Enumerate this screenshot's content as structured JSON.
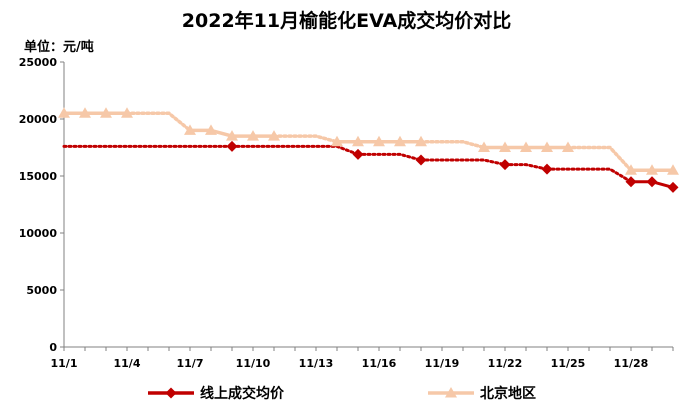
{
  "chart_data": {
    "type": "line",
    "title": "2022年11月榆能化EVA成交均价对比",
    "unit_label": "单位：元/吨",
    "ylim": [
      0,
      25000
    ],
    "y_ticks": [
      0,
      5000,
      10000,
      15000,
      20000,
      25000
    ],
    "x_tick_labels": [
      "11/1",
      "11/4",
      "11/7",
      "11/10",
      "11/13",
      "11/16",
      "11/19",
      "11/22",
      "11/25",
      "11/28"
    ],
    "x_range": [
      1,
      30
    ],
    "grid": false,
    "legend_position": "bottom",
    "series": [
      {
        "name": "线上成交均价",
        "color": "#c00000",
        "marker": "diamond",
        "points": [
          {
            "x": 1,
            "y": 17600,
            "gap_before": false,
            "marker": false
          },
          {
            "x": 9,
            "y": 17600,
            "gap_before": true,
            "marker": true
          },
          {
            "x": 14,
            "y": 17600,
            "gap_before": true,
            "marker": false
          },
          {
            "x": 15,
            "y": 16900,
            "gap_before": true,
            "marker": true
          },
          {
            "x": 18,
            "y": 16400,
            "gap_before": true,
            "marker": true
          },
          {
            "x": 22,
            "y": 16000,
            "gap_before": true,
            "marker": true
          },
          {
            "x": 24,
            "y": 15600,
            "gap_before": true,
            "marker": true
          },
          {
            "x": 28,
            "y": 14500,
            "gap_before": true,
            "marker": true
          },
          {
            "x": 29,
            "y": 14500,
            "gap_before": false,
            "marker": true
          },
          {
            "x": 30,
            "y": 14000,
            "gap_before": false,
            "marker": true
          }
        ]
      },
      {
        "name": "北京地区",
        "color": "#f6c8a8",
        "marker": "triangle",
        "points": [
          {
            "x": 1,
            "y": 20500,
            "gap_before": false,
            "marker": true
          },
          {
            "x": 2,
            "y": 20500,
            "gap_before": false,
            "marker": true
          },
          {
            "x": 3,
            "y": 20500,
            "gap_before": false,
            "marker": true
          },
          {
            "x": 4,
            "y": 20500,
            "gap_before": false,
            "marker": true
          },
          {
            "x": 7,
            "y": 19000,
            "gap_before": true,
            "marker": true
          },
          {
            "x": 8,
            "y": 19000,
            "gap_before": false,
            "marker": true
          },
          {
            "x": 9,
            "y": 18500,
            "gap_before": false,
            "marker": true
          },
          {
            "x": 10,
            "y": 18500,
            "gap_before": false,
            "marker": true
          },
          {
            "x": 11,
            "y": 18500,
            "gap_before": false,
            "marker": true
          },
          {
            "x": 14,
            "y": 18000,
            "gap_before": true,
            "marker": true
          },
          {
            "x": 15,
            "y": 18000,
            "gap_before": false,
            "marker": true
          },
          {
            "x": 16,
            "y": 18000,
            "gap_before": false,
            "marker": true
          },
          {
            "x": 17,
            "y": 18000,
            "gap_before": false,
            "marker": true
          },
          {
            "x": 18,
            "y": 18000,
            "gap_before": false,
            "marker": true
          },
          {
            "x": 21,
            "y": 17500,
            "gap_before": true,
            "marker": true
          },
          {
            "x": 22,
            "y": 17500,
            "gap_before": false,
            "marker": true
          },
          {
            "x": 23,
            "y": 17500,
            "gap_before": false,
            "marker": true
          },
          {
            "x": 24,
            "y": 17500,
            "gap_before": false,
            "marker": true
          },
          {
            "x": 25,
            "y": 17500,
            "gap_before": false,
            "marker": true
          },
          {
            "x": 28,
            "y": 15500,
            "gap_before": true,
            "marker": true
          },
          {
            "x": 29,
            "y": 15500,
            "gap_before": false,
            "marker": true
          },
          {
            "x": 30,
            "y": 15500,
            "gap_before": false,
            "marker": true
          }
        ]
      }
    ]
  }
}
